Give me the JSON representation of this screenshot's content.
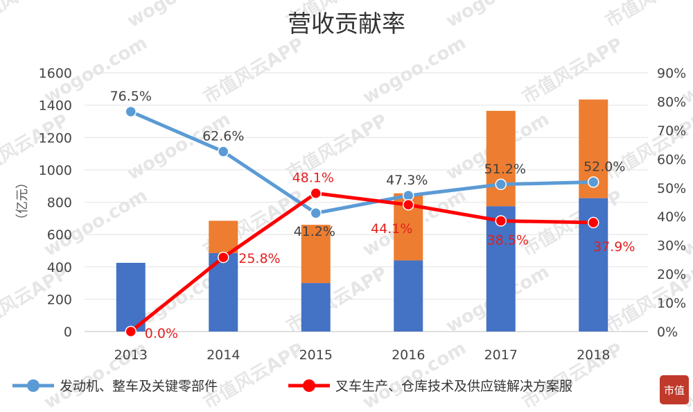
{
  "chart_data": {
    "type": "bar",
    "title": "营收贡献率",
    "ylabel": "（亿元）",
    "categories": [
      "2013",
      "2014",
      "2015",
      "2016",
      "2017",
      "2018"
    ],
    "ylim": [
      0,
      1600
    ],
    "yticks": [
      "0",
      "200",
      "400",
      "600",
      "800",
      "1000",
      "1200",
      "1400",
      "1600"
    ],
    "y2lim": [
      0,
      90
    ],
    "y2ticks": [
      "0%",
      "10%",
      "20%",
      "30%",
      "40%",
      "50%",
      "60%",
      "70%",
      "80%",
      "90%"
    ],
    "stacked_bars": [
      {
        "values": [
          425,
          485,
          300,
          440,
          775,
          825
        ],
        "color": "#4472c4"
      },
      {
        "values": [
          0,
          200,
          360,
          415,
          590,
          610
        ],
        "color": "#ed7d31"
      }
    ],
    "series": [
      {
        "name": "发动机、整车及关键零部件",
        "type": "line",
        "axis": "right",
        "values": [
          76.5,
          62.6,
          41.2,
          47.3,
          51.2,
          52.0
        ],
        "labels": [
          "76.5%",
          "62.6%",
          "41.2%",
          "47.3%",
          "51.2%",
          "52.0%"
        ],
        "color": "#5b9bd5"
      },
      {
        "name": "叉车生产、仓库技术及供应链解决方案服",
        "type": "line",
        "axis": "right",
        "values": [
          0.0,
          25.8,
          48.1,
          44.1,
          38.5,
          37.9
        ],
        "labels": [
          "0.0%",
          "25.8%",
          "48.1%",
          "44.1%",
          "38.5%",
          "37.9%"
        ],
        "color": "#ff0000"
      }
    ],
    "grid": true,
    "legend_position": "bottom"
  },
  "watermark": {
    "text_cn": "市值风云APP",
    "text_en": "wogoo.com",
    "badge": "市值"
  }
}
